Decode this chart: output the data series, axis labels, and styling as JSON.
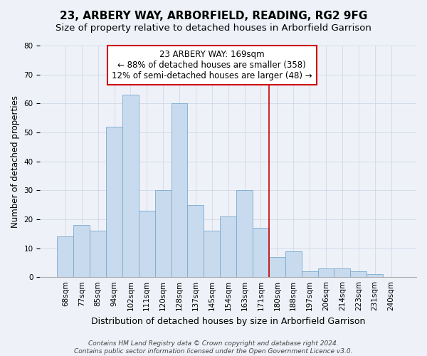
{
  "title": "23, ARBERY WAY, ARBORFIELD, READING, RG2 9FG",
  "subtitle": "Size of property relative to detached houses in Arborfield Garrison",
  "xlabel": "Distribution of detached houses by size in Arborfield Garrison",
  "ylabel": "Number of detached properties",
  "bar_labels": [
    "68sqm",
    "77sqm",
    "85sqm",
    "94sqm",
    "102sqm",
    "111sqm",
    "120sqm",
    "128sqm",
    "137sqm",
    "145sqm",
    "154sqm",
    "163sqm",
    "171sqm",
    "180sqm",
    "188sqm",
    "197sqm",
    "206sqm",
    "214sqm",
    "223sqm",
    "231sqm",
    "240sqm"
  ],
  "bar_values": [
    14,
    18,
    16,
    52,
    63,
    23,
    30,
    60,
    25,
    16,
    21,
    30,
    17,
    7,
    9,
    2,
    3,
    3,
    2,
    1,
    0
  ],
  "bar_color": "#c8daee",
  "bar_edge_color": "#7aaace",
  "grid_color": "#d0d8e8",
  "vline_color": "#cc0000",
  "annotation_title": "23 ARBERY WAY: 169sqm",
  "annotation_line1": "← 88% of detached houses are smaller (358)",
  "annotation_line2": "12% of semi-detached houses are larger (48) →",
  "annotation_box_color": "white",
  "annotation_box_edge": "#cc0000",
  "ylim": [
    0,
    80
  ],
  "yticks": [
    0,
    10,
    20,
    30,
    40,
    50,
    60,
    70,
    80
  ],
  "footer_line1": "Contains HM Land Registry data © Crown copyright and database right 2024.",
  "footer_line2": "Contains public sector information licensed under the Open Government Licence v3.0.",
  "bg_color": "#eef2f8",
  "title_fontsize": 11,
  "subtitle_fontsize": 9.5,
  "xlabel_fontsize": 9,
  "ylabel_fontsize": 8.5,
  "tick_fontsize": 7.5,
  "footer_fontsize": 6.5,
  "annotation_fontsize": 8.5,
  "vline_bar_index": 12
}
